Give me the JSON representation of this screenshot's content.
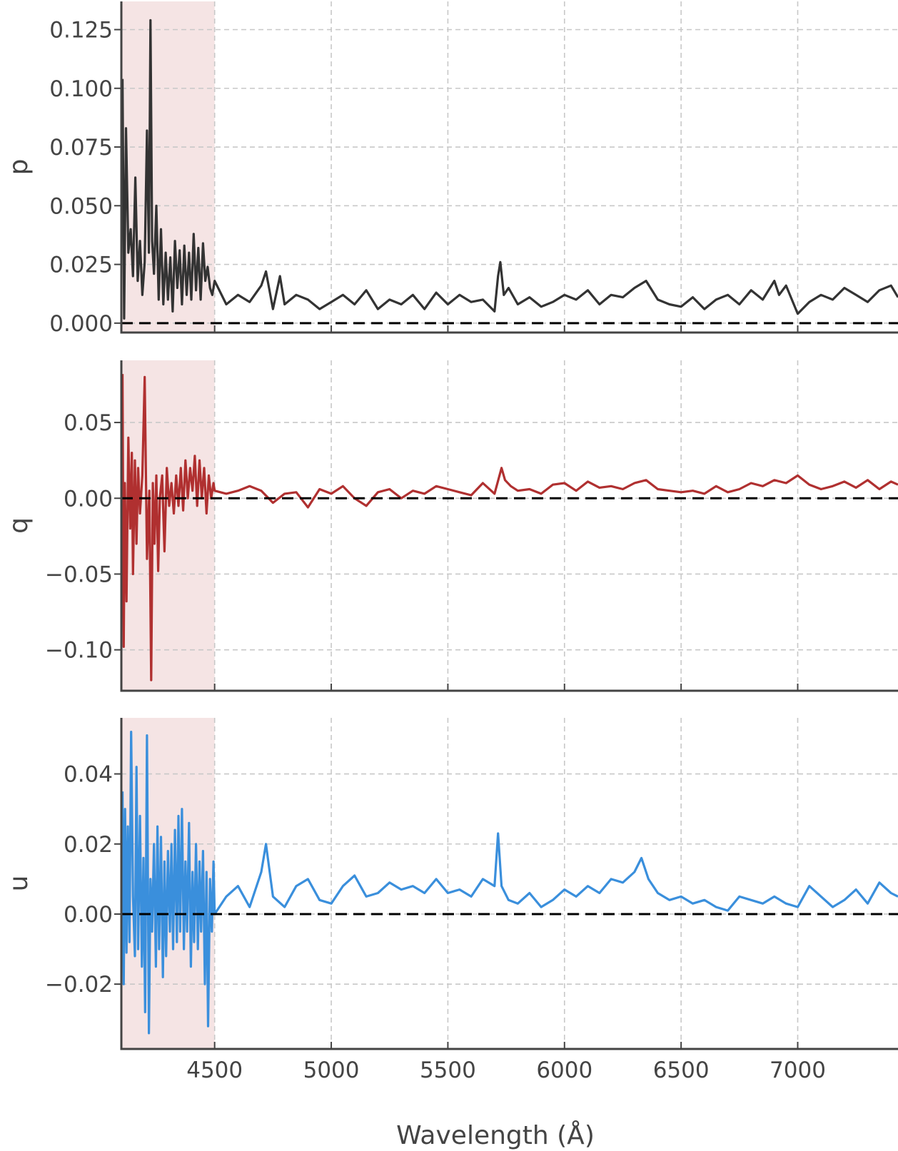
{
  "chart_data": {
    "type": "line",
    "xlabel": "Wavelength (Å)",
    "xlim": [
      4100,
      7430
    ],
    "xticks": [
      4500,
      5000,
      5500,
      6000,
      6500,
      7000
    ],
    "shaded_region": {
      "x": [
        4100,
        4500
      ],
      "color": "#f5e4e4"
    },
    "grid": true,
    "panels": [
      {
        "name": "p",
        "ylabel": "p",
        "ylim": [
          -0.004,
          0.137
        ],
        "yticks": [
          0.0,
          0.025,
          0.05,
          0.075,
          0.1,
          0.125
        ],
        "tick_format": 3,
        "color": "#333333",
        "reference_line": 0,
        "series": {
          "x": [
            4105,
            4112,
            4120,
            4130,
            4140,
            4150,
            4160,
            4170,
            4180,
            4190,
            4200,
            4210,
            4218,
            4225,
            4232,
            4240,
            4250,
            4260,
            4270,
            4280,
            4290,
            4300,
            4310,
            4320,
            4330,
            4340,
            4350,
            4360,
            4370,
            4380,
            4390,
            4400,
            4410,
            4420,
            4430,
            4440,
            4450,
            4460,
            4470,
            4480,
            4490,
            4500,
            4550,
            4600,
            4650,
            4700,
            4720,
            4750,
            4780,
            4800,
            4850,
            4900,
            4950,
            5000,
            5050,
            5100,
            5150,
            5200,
            5250,
            5300,
            5350,
            5400,
            5450,
            5500,
            5550,
            5600,
            5650,
            5700,
            5715,
            5725,
            5740,
            5760,
            5800,
            5850,
            5900,
            5950,
            6000,
            6050,
            6100,
            6150,
            6200,
            6250,
            6300,
            6350,
            6400,
            6450,
            6500,
            6550,
            6600,
            6650,
            6700,
            6750,
            6800,
            6850,
            6900,
            6920,
            6950,
            7000,
            7050,
            7100,
            7150,
            7200,
            7250,
            7300,
            7350,
            7400,
            7430
          ],
          "y": [
            0.104,
            0.002,
            0.083,
            0.03,
            0.04,
            0.02,
            0.062,
            0.018,
            0.035,
            0.012,
            0.026,
            0.082,
            0.03,
            0.129,
            0.035,
            0.021,
            0.05,
            0.01,
            0.04,
            0.008,
            0.03,
            0.01,
            0.028,
            0.005,
            0.035,
            0.015,
            0.031,
            0.008,
            0.033,
            0.012,
            0.03,
            0.01,
            0.038,
            0.014,
            0.032,
            0.01,
            0.034,
            0.018,
            0.024,
            0.015,
            0.012,
            0.018,
            0.008,
            0.012,
            0.009,
            0.016,
            0.022,
            0.006,
            0.02,
            0.008,
            0.012,
            0.01,
            0.006,
            0.009,
            0.012,
            0.008,
            0.014,
            0.006,
            0.01,
            0.008,
            0.012,
            0.006,
            0.013,
            0.008,
            0.012,
            0.009,
            0.01,
            0.005,
            0.02,
            0.026,
            0.012,
            0.015,
            0.008,
            0.011,
            0.007,
            0.009,
            0.012,
            0.01,
            0.014,
            0.008,
            0.012,
            0.011,
            0.015,
            0.018,
            0.01,
            0.008,
            0.007,
            0.011,
            0.006,
            0.01,
            0.012,
            0.008,
            0.014,
            0.01,
            0.018,
            0.012,
            0.016,
            0.004,
            0.009,
            0.012,
            0.01,
            0.015,
            0.012,
            0.009,
            0.014,
            0.016,
            0.011
          ]
        }
      },
      {
        "name": "q",
        "ylabel": "q",
        "ylim": [
          -0.127,
          0.091
        ],
        "yticks": [
          -0.1,
          -0.05,
          0.0,
          0.05
        ],
        "tick_format": 2,
        "color": "#b03030",
        "reference_line": 0,
        "series": {
          "x": [
            4105,
            4110,
            4115,
            4122,
            4130,
            4138,
            4145,
            4150,
            4158,
            4165,
            4172,
            4180,
            4190,
            4200,
            4210,
            4220,
            4228,
            4235,
            4242,
            4250,
            4258,
            4265,
            4275,
            4285,
            4295,
            4305,
            4315,
            4325,
            4335,
            4345,
            4355,
            4365,
            4375,
            4385,
            4395,
            4405,
            4415,
            4425,
            4435,
            4445,
            4455,
            4465,
            4475,
            4485,
            4495,
            4500,
            4550,
            4600,
            4650,
            4700,
            4750,
            4800,
            4850,
            4900,
            4950,
            5000,
            5050,
            5100,
            5150,
            5200,
            5250,
            5300,
            5350,
            5400,
            5450,
            5500,
            5550,
            5600,
            5650,
            5700,
            5730,
            5745,
            5770,
            5800,
            5850,
            5900,
            5950,
            6000,
            6050,
            6100,
            6150,
            6200,
            6250,
            6300,
            6350,
            6400,
            6450,
            6500,
            6550,
            6600,
            6650,
            6700,
            6750,
            6800,
            6850,
            6900,
            6950,
            7000,
            7050,
            7100,
            7150,
            7200,
            7250,
            7300,
            7350,
            7400,
            7430
          ],
          "y": [
            0.082,
            -0.098,
            0.01,
            -0.068,
            0.04,
            -0.02,
            0.03,
            -0.05,
            0.025,
            -0.03,
            0.02,
            -0.01,
            0.015,
            0.08,
            -0.04,
            0.005,
            -0.12,
            0.01,
            -0.03,
            0.015,
            -0.048,
            0.0,
            0.015,
            -0.035,
            0.02,
            -0.005,
            0.01,
            -0.01,
            0.015,
            -0.005,
            0.02,
            -0.008,
            0.025,
            0.0,
            0.02,
            0.005,
            0.028,
            -0.005,
            0.025,
            0.0,
            0.02,
            -0.01,
            0.015,
            0.0,
            0.01,
            0.005,
            0.003,
            0.005,
            0.008,
            0.005,
            -0.003,
            0.003,
            0.004,
            -0.006,
            0.006,
            0.003,
            0.008,
            0.0,
            -0.005,
            0.004,
            0.006,
            0.0,
            0.005,
            0.003,
            0.008,
            0.006,
            0.004,
            0.002,
            0.01,
            0.003,
            0.02,
            0.012,
            0.008,
            0.005,
            0.006,
            0.003,
            0.009,
            0.01,
            0.005,
            0.011,
            0.007,
            0.008,
            0.006,
            0.01,
            0.012,
            0.006,
            0.005,
            0.004,
            0.005,
            0.003,
            0.008,
            0.004,
            0.006,
            0.01,
            0.008,
            0.012,
            0.01,
            0.015,
            0.009,
            0.006,
            0.008,
            0.011,
            0.007,
            0.012,
            0.006,
            0.011,
            0.009
          ]
        }
      },
      {
        "name": "u",
        "ylabel": "u",
        "ylim": [
          -0.0385,
          0.056
        ],
        "yticks": [
          -0.02,
          0.0,
          0.02,
          0.04
        ],
        "tick_format": 2,
        "color": "#3a8fdc",
        "reference_line": 0,
        "series": {
          "x": [
            4105,
            4110,
            4116,
            4122,
            4128,
            4135,
            4142,
            4150,
            4158,
            4165,
            4172,
            4180,
            4188,
            4195,
            4202,
            4210,
            4218,
            4225,
            4232,
            4240,
            4248,
            4255,
            4262,
            4270,
            4278,
            4285,
            4292,
            4300,
            4308,
            4315,
            4322,
            4330,
            4338,
            4345,
            4352,
            4360,
            4368,
            4375,
            4382,
            4390,
            4398,
            4405,
            4412,
            4420,
            4428,
            4435,
            4442,
            4450,
            4458,
            4465,
            4472,
            4480,
            4488,
            4495,
            4500,
            4550,
            4600,
            4650,
            4700,
            4720,
            4750,
            4800,
            4850,
            4900,
            4950,
            5000,
            5050,
            5100,
            5150,
            5200,
            5250,
            5300,
            5350,
            5400,
            5450,
            5500,
            5550,
            5600,
            5650,
            5700,
            5715,
            5730,
            5760,
            5800,
            5850,
            5900,
            5950,
            6000,
            6050,
            6100,
            6150,
            6200,
            6250,
            6300,
            6330,
            6360,
            6400,
            6450,
            6500,
            6550,
            6600,
            6650,
            6700,
            6750,
            6800,
            6850,
            6900,
            6950,
            7000,
            7050,
            7100,
            7150,
            7200,
            7250,
            7300,
            7350,
            7400,
            7430
          ],
          "y": [
            0.035,
            -0.02,
            0.03,
            -0.011,
            0.025,
            -0.008,
            0.052,
            0.005,
            -0.012,
            0.042,
            -0.01,
            0.028,
            -0.015,
            0.016,
            -0.028,
            0.051,
            -0.034,
            0.01,
            -0.005,
            0.02,
            -0.015,
            0.025,
            -0.01,
            0.022,
            -0.018,
            0.015,
            -0.012,
            0.018,
            -0.005,
            0.02,
            -0.01,
            0.024,
            -0.008,
            0.028,
            -0.005,
            0.03,
            -0.01,
            0.015,
            -0.005,
            0.026,
            -0.015,
            0.012,
            -0.008,
            0.02,
            -0.01,
            0.015,
            -0.005,
            0.018,
            -0.02,
            0.012,
            -0.032,
            0.01,
            -0.005,
            0.015,
            0.0,
            0.005,
            0.008,
            0.002,
            0.012,
            0.02,
            0.005,
            0.002,
            0.008,
            0.01,
            0.004,
            0.003,
            0.008,
            0.011,
            0.005,
            0.006,
            0.009,
            0.007,
            0.008,
            0.006,
            0.01,
            0.006,
            0.007,
            0.005,
            0.01,
            0.008,
            0.023,
            0.008,
            0.004,
            0.003,
            0.006,
            0.002,
            0.004,
            0.007,
            0.005,
            0.008,
            0.006,
            0.01,
            0.009,
            0.012,
            0.016,
            0.01,
            0.006,
            0.004,
            0.005,
            0.003,
            0.004,
            0.002,
            0.001,
            0.005,
            0.004,
            0.003,
            0.005,
            0.003,
            0.002,
            0.008,
            0.005,
            0.002,
            0.004,
            0.007,
            0.003,
            0.009,
            0.006,
            0.005
          ]
        }
      }
    ]
  }
}
